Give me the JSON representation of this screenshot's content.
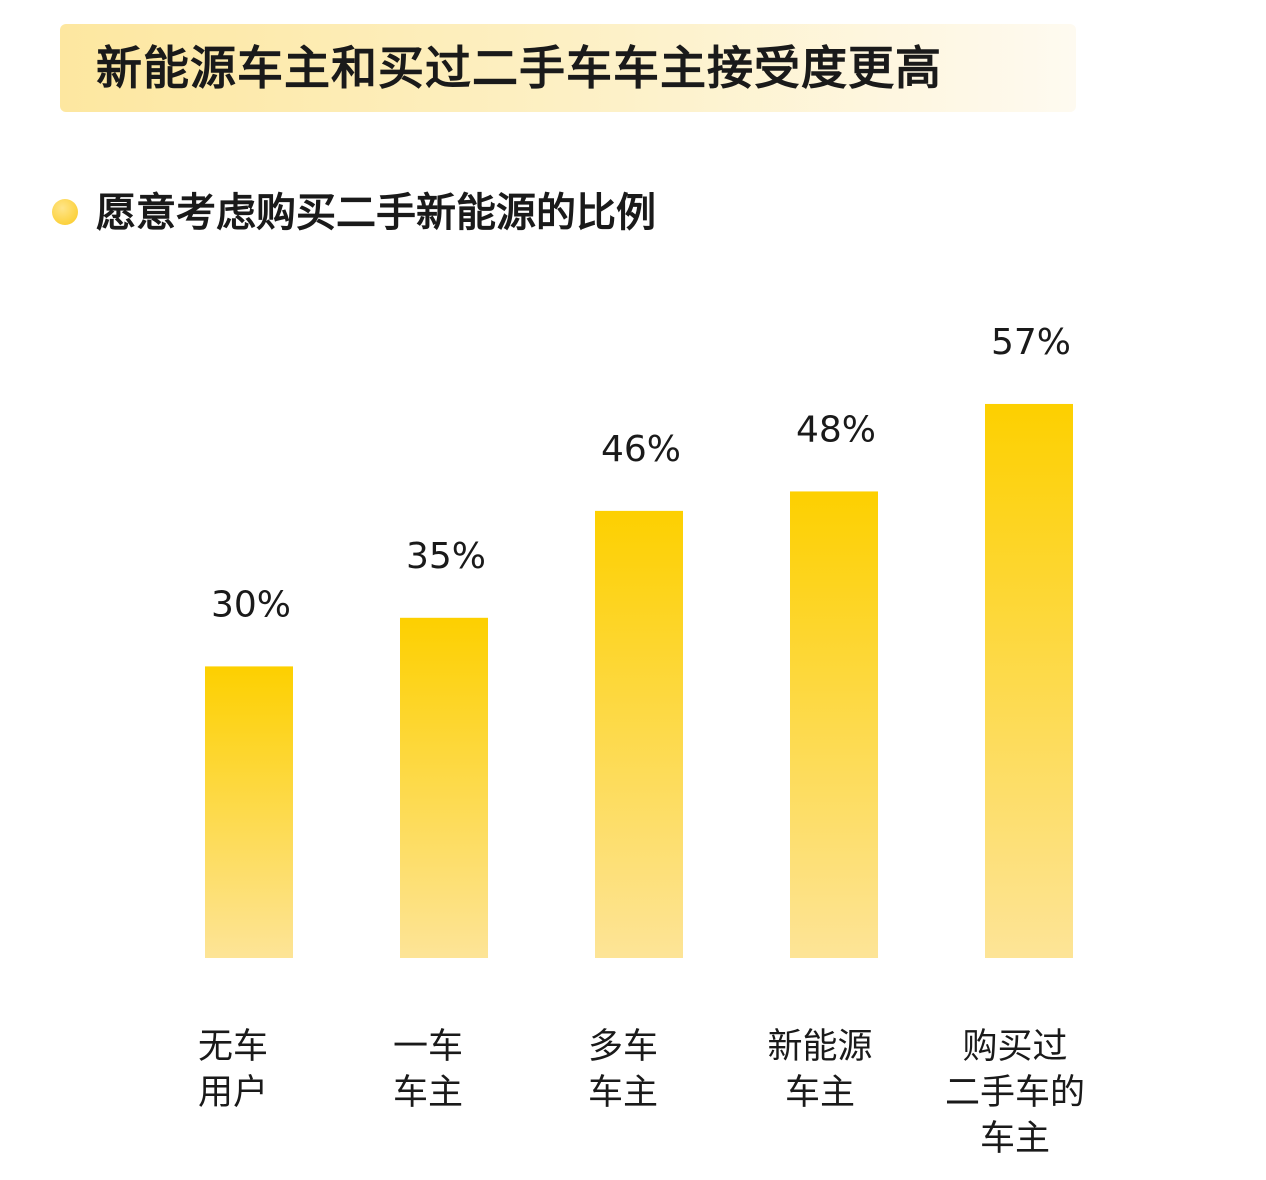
{
  "header": {
    "title": "新能源车主和买过二手车车主接受度更高"
  },
  "subtitle": "愿意考虑购买二手新能源的比例",
  "colors": {
    "bar_top": "#FDD000",
    "bar_bottom": "#FDE497",
    "banner": "#FDE7A0",
    "dot": "#FCD23F"
  },
  "chart_data": {
    "type": "bar",
    "title": "愿意考虑购买二手新能源的比例",
    "categories": [
      [
        "无车",
        "用户"
      ],
      [
        "一车",
        "车主"
      ],
      [
        "多车",
        "车主"
      ],
      [
        "新能源",
        "车主"
      ],
      [
        "购买过",
        "二手车的",
        "车主"
      ]
    ],
    "values": [
      30,
      35,
      46,
      48,
      57
    ],
    "value_labels": [
      "30%",
      "35%",
      "46%",
      "48%",
      "57%"
    ],
    "unit": "%",
    "grid": false,
    "legend": "none"
  }
}
